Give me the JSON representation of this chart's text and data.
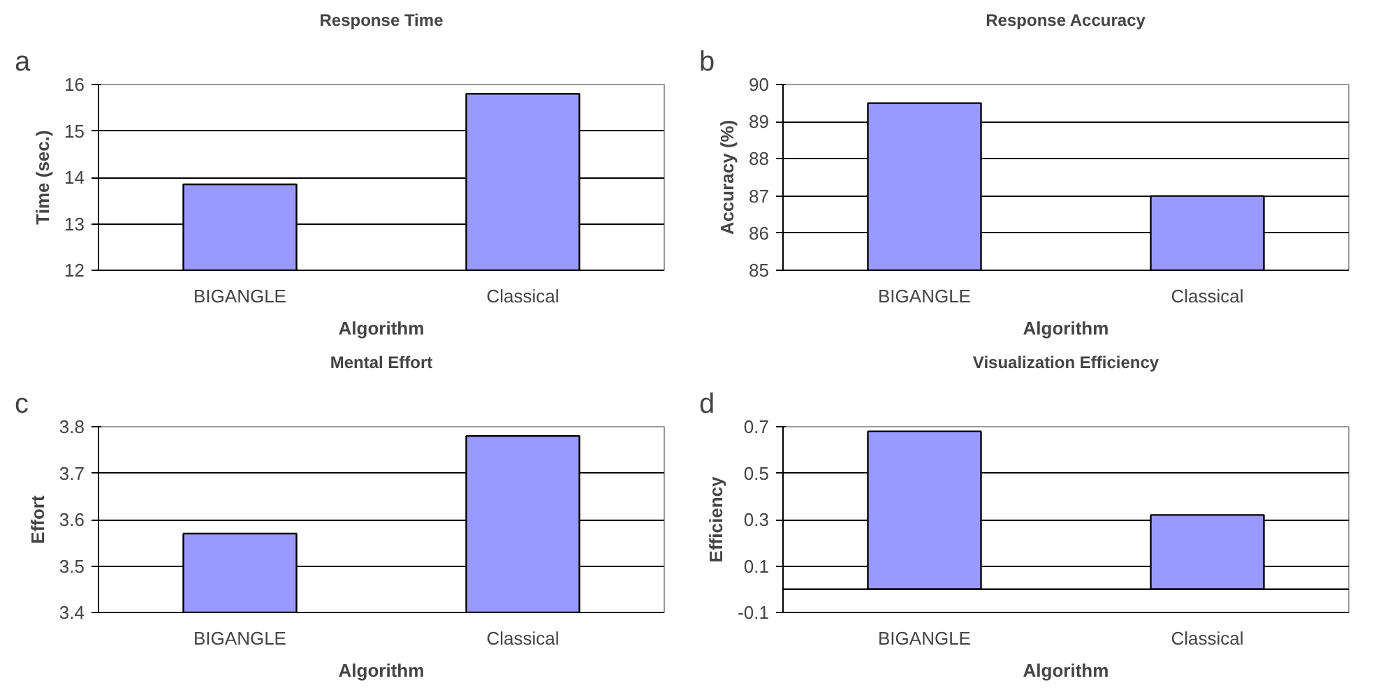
{
  "chart_data": [
    {
      "type": "bar",
      "title": "Response Time",
      "xlabel": "Algorithm",
      "ylabel": "Time (sec.)",
      "annotations": [
        "a"
      ],
      "categories": [
        "BIGANGLE",
        "Classical"
      ],
      "values": [
        13.85,
        15.8
      ],
      "color": "#9999ff",
      "ylim": [
        12,
        16
      ],
      "yticks": [
        12,
        13,
        14,
        15,
        16
      ],
      "grid": "y"
    },
    {
      "type": "bar",
      "title": "Response Accuracy",
      "xlabel": "Algorithm",
      "ylabel": "Accuracy (%)",
      "annotations": [
        "b"
      ],
      "categories": [
        "BIGANGLE",
        "Classical"
      ],
      "values": [
        89.5,
        87.0
      ],
      "color": "#9999ff",
      "ylim": [
        85,
        90
      ],
      "yticks": [
        85,
        86,
        87,
        88,
        89,
        90
      ],
      "grid": "y"
    },
    {
      "type": "bar",
      "title": "Mental Effort",
      "xlabel": "Algorithm",
      "ylabel": "Effort",
      "annotations": [
        "c"
      ],
      "categories": [
        "BIGANGLE",
        "Classical"
      ],
      "values": [
        3.57,
        3.78
      ],
      "color": "#9999ff",
      "ylim": [
        3.4,
        3.8
      ],
      "yticks": [
        3.4,
        3.5,
        3.6,
        3.7,
        3.8
      ],
      "grid": "y"
    },
    {
      "type": "bar",
      "title": "Visualization Efficiency",
      "xlabel": "Algorithm",
      "ylabel": "Efficiency",
      "annotations": [
        "d"
      ],
      "categories": [
        "BIGANGLE",
        "Classical"
      ],
      "values": [
        0.68,
        0.32
      ],
      "color": "#9999ff",
      "ylim": [
        -0.1,
        0.7
      ],
      "yticks": [
        -0.1,
        0.1,
        0.3,
        0.5,
        0.7
      ],
      "grid": "y"
    }
  ]
}
